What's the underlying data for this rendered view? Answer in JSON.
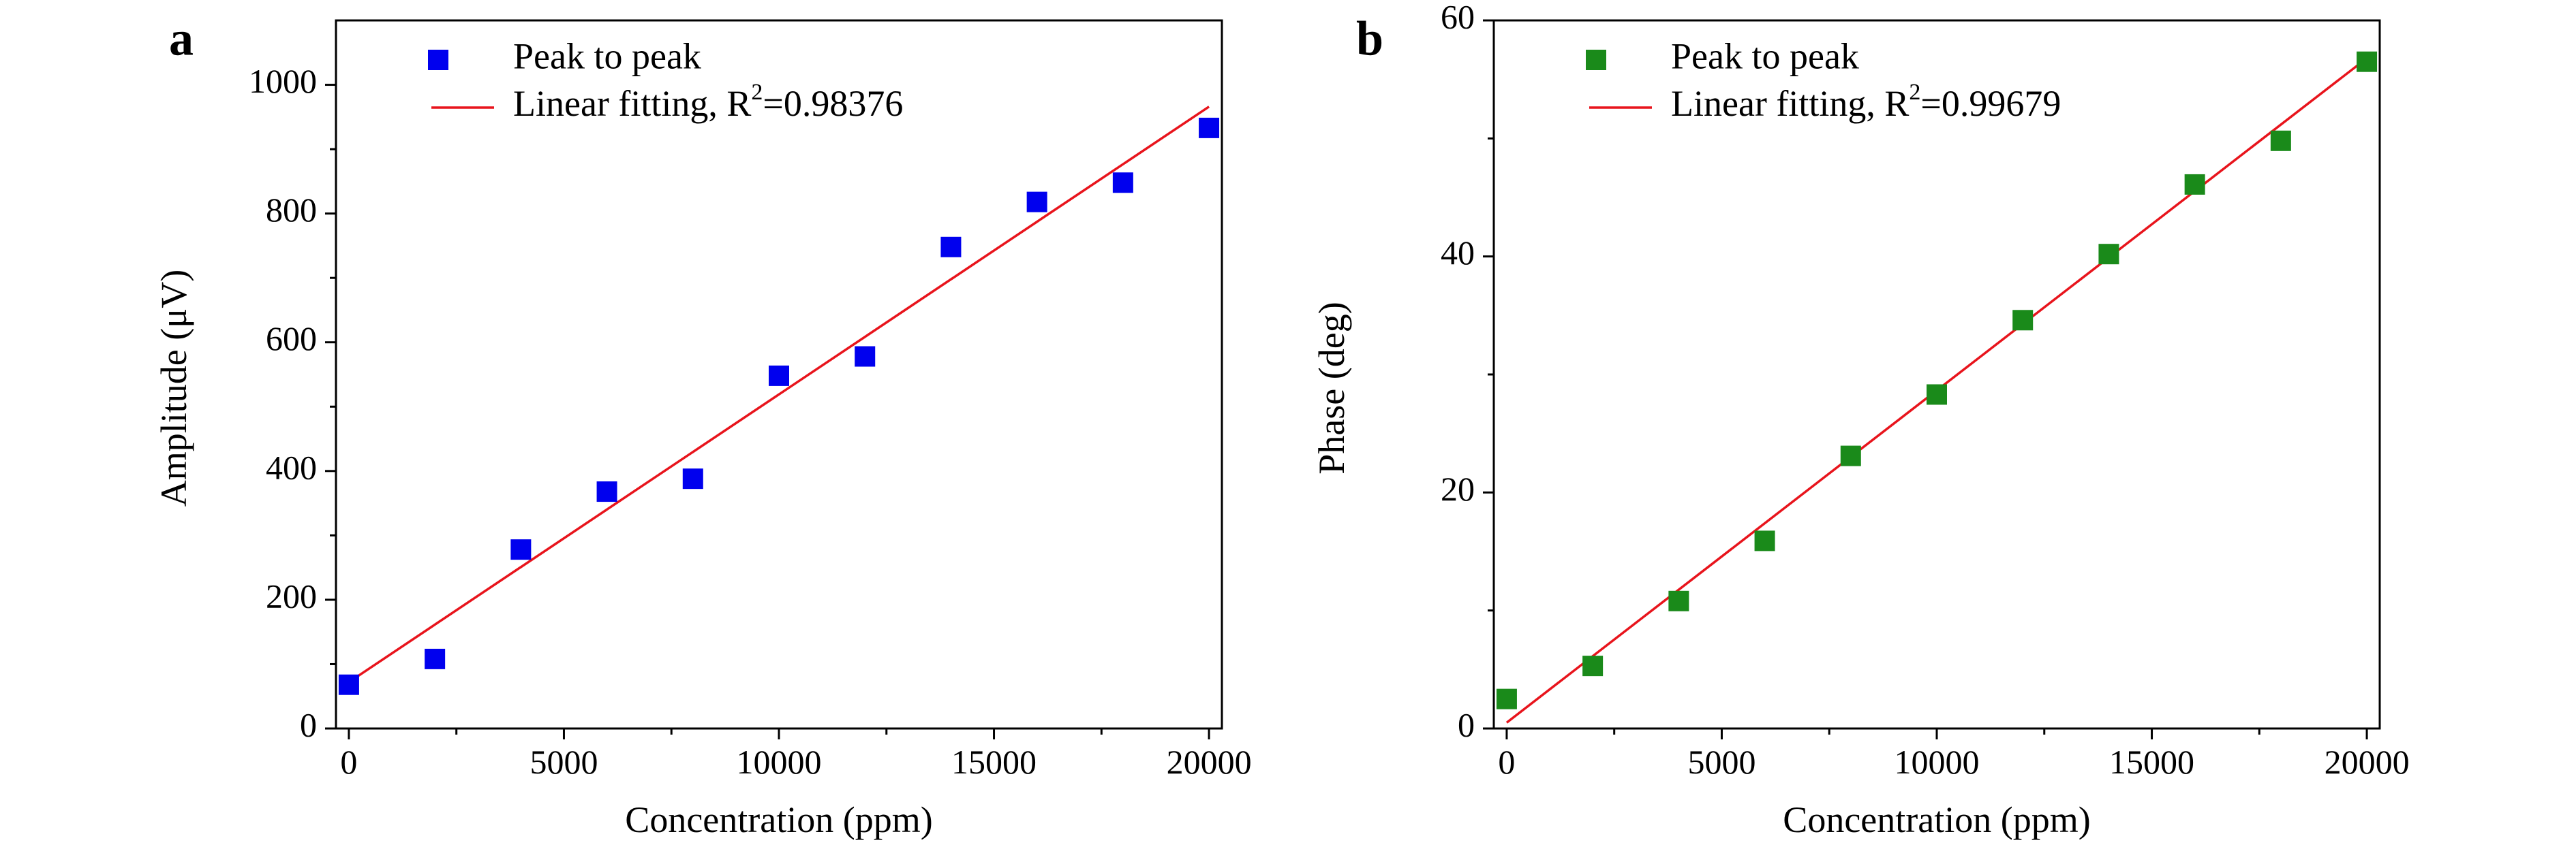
{
  "chart_data": [
    {
      "panel": "a",
      "type": "scatter",
      "xlabel": "Concentration (ppm)",
      "ylabel": "Amplitude (μV)",
      "xlim": [
        -300,
        20300
      ],
      "ylim": [
        0,
        1100
      ],
      "xticks": [
        0,
        5000,
        10000,
        15000,
        20000
      ],
      "yticks": [
        0,
        200,
        400,
        600,
        800,
        1000
      ],
      "grid": false,
      "legend_position": "top-left",
      "marker_color": "#0000ee",
      "line_color": "#e8141c",
      "series": [
        {
          "name": "Peak to peak",
          "kind": "scatter",
          "x": [
            0,
            2000,
            4000,
            6000,
            8000,
            10000,
            12000,
            14000,
            16000,
            18000,
            20000
          ],
          "y": [
            68,
            108,
            278,
            368,
            388,
            548,
            578,
            748,
            818,
            848,
            933
          ]
        },
        {
          "name": "Linear fitting, R",
          "name_sup": "2",
          "name_tail": "=0.98376",
          "kind": "line",
          "x": [
            0,
            20000
          ],
          "y": [
            72,
            966
          ]
        }
      ]
    },
    {
      "panel": "b",
      "type": "scatter",
      "xlabel": "Concentration (ppm)",
      "ylabel": "Phase (deg)",
      "xlim": [
        -300,
        20300
      ],
      "ylim": [
        0,
        60
      ],
      "xticks": [
        0,
        5000,
        10000,
        15000,
        20000
      ],
      "yticks": [
        0,
        20,
        40,
        60
      ],
      "grid": false,
      "legend_position": "top-left",
      "marker_color": "#1a8a1a",
      "line_color": "#e8141c",
      "series": [
        {
          "name": "Peak to peak",
          "kind": "scatter",
          "x": [
            0,
            2000,
            4000,
            6000,
            8000,
            10000,
            12000,
            14000,
            16000,
            18000,
            20000
          ],
          "y": [
            2.5,
            5.3,
            10.8,
            15.9,
            23.1,
            28.3,
            34.6,
            40.2,
            46.1,
            49.8,
            56.5
          ]
        },
        {
          "name": "Linear fitting, R",
          "name_sup": "2",
          "name_tail": "=0.99679",
          "kind": "line",
          "x": [
            0,
            20000
          ],
          "y": [
            0.5,
            56.8
          ]
        }
      ]
    }
  ]
}
